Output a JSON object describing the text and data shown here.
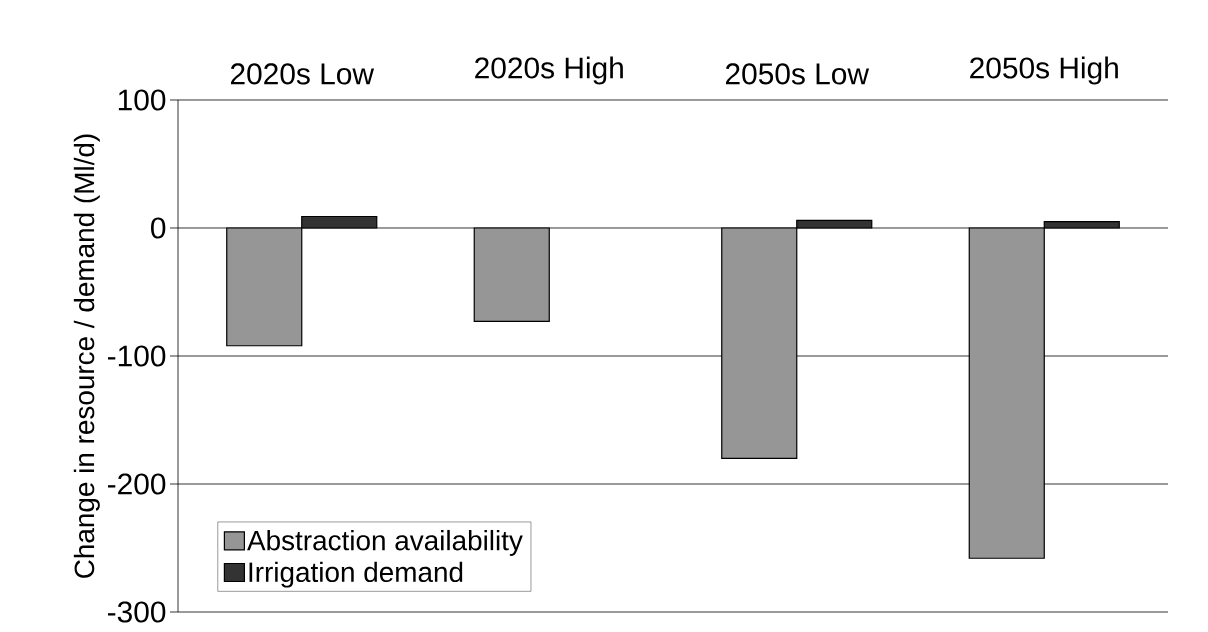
{
  "chart_data": {
    "type": "bar",
    "ylabel": "Change in resource / demand (Ml/d)",
    "categories": [
      "2020s Low",
      "2020s High",
      "2050s Low",
      "2050s High"
    ],
    "series": [
      {
        "name": "Abstraction availability",
        "color": "#969696",
        "values": [
          -92,
          -73,
          -180,
          -258
        ]
      },
      {
        "name": "Irrigation demand",
        "color": "#333333",
        "values": [
          9,
          null,
          6,
          5
        ]
      }
    ],
    "ylim": [
      -300,
      100
    ],
    "yticks": [
      -300,
      -200,
      -100,
      0,
      100
    ],
    "grid": "y",
    "legend": "bottom left"
  }
}
